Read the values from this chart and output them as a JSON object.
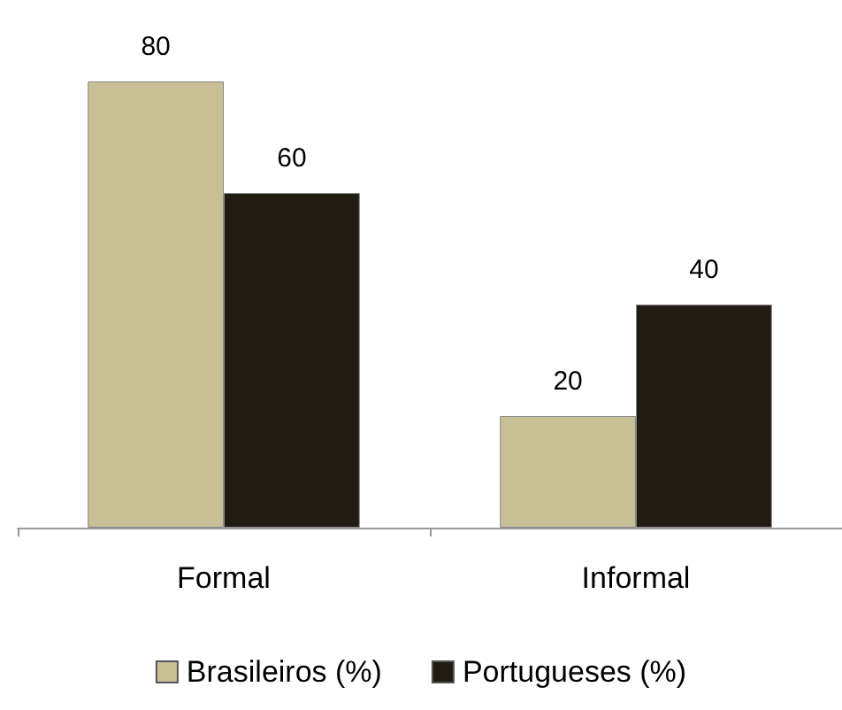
{
  "chart_data": {
    "type": "bar",
    "categories": [
      "Formal",
      "Informal"
    ],
    "series": [
      {
        "name": "Brasileiros (%)",
        "color": "#c9bf96",
        "values": [
          80,
          20
        ]
      },
      {
        "name": "Portugueses (%)",
        "color": "#211c12",
        "values": [
          60,
          40
        ]
      }
    ],
    "data_labels": true,
    "legend": "bottom"
  }
}
